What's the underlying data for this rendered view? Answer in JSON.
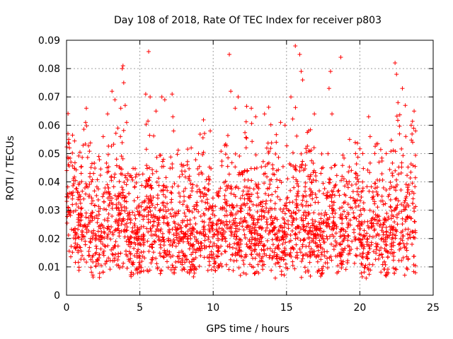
{
  "chart_data": {
    "type": "scatter",
    "title": "Day 108 of 2018, Rate Of TEC Index for receiver p803",
    "xlabel": "GPS time / hours",
    "ylabel": "ROTI / TECUs",
    "xlim": [
      0,
      25
    ],
    "ylim": [
      0,
      0.09
    ],
    "grid": true,
    "marker": "+",
    "color": "#ff0000",
    "x_ticks": [
      0,
      5,
      10,
      15,
      20,
      25
    ],
    "x_tick_labels": [
      "0",
      "5",
      "10",
      "15",
      "20",
      "25"
    ],
    "y_ticks": [
      0,
      0.01,
      0.02,
      0.03,
      0.04,
      0.05,
      0.06,
      0.07,
      0.08,
      0.09
    ],
    "y_tick_labels": [
      "0",
      "0.01",
      "0.02",
      "0.03",
      "0.04",
      "0.05",
      "0.06",
      "0.07",
      "0.08",
      "0.09"
    ],
    "series": [
      {
        "name": "ROTI",
        "points": [
          [
            0.1,
            0.057
          ],
          [
            0.15,
            0.055
          ],
          [
            0.2,
            0.052
          ],
          [
            0.3,
            0.047
          ],
          [
            0.35,
            0.036
          ],
          [
            0.4,
            0.032
          ],
          [
            1.0,
            0.043
          ],
          [
            1.3,
            0.061
          ],
          [
            1.35,
            0.066
          ],
          [
            1.6,
            0.043
          ],
          [
            2.2,
            0.049
          ],
          [
            2.5,
            0.056
          ],
          [
            2.8,
            0.064
          ],
          [
            3.1,
            0.072
          ],
          [
            3.3,
            0.069
          ],
          [
            3.5,
            0.059
          ],
          [
            3.7,
            0.066
          ],
          [
            3.8,
            0.08
          ],
          [
            3.85,
            0.081
          ],
          [
            3.9,
            0.075
          ],
          [
            4.0,
            0.067
          ],
          [
            4.1,
            0.061
          ],
          [
            5.4,
            0.071
          ],
          [
            5.6,
            0.086
          ],
          [
            5.7,
            0.07
          ],
          [
            6.1,
            0.065
          ],
          [
            6.5,
            0.07
          ],
          [
            6.7,
            0.069
          ],
          [
            7.2,
            0.071
          ],
          [
            7.25,
            0.063
          ],
          [
            7.3,
            0.058
          ],
          [
            8.5,
            0.052
          ],
          [
            9.0,
            0.05
          ],
          [
            9.8,
            0.058
          ],
          [
            11.1,
            0.085
          ],
          [
            11.2,
            0.072
          ],
          [
            11.5,
            0.066
          ],
          [
            11.7,
            0.07
          ],
          [
            12.6,
            0.066
          ],
          [
            12.9,
            0.063
          ],
          [
            13.5,
            0.064
          ],
          [
            14.3,
            0.054
          ],
          [
            14.6,
            0.061
          ],
          [
            14.9,
            0.06
          ],
          [
            15.3,
            0.07
          ],
          [
            15.6,
            0.088
          ],
          [
            15.9,
            0.085
          ],
          [
            16.0,
            0.079
          ],
          [
            16.1,
            0.076
          ],
          [
            16.5,
            0.058
          ],
          [
            16.9,
            0.064
          ],
          [
            17.9,
            0.073
          ],
          [
            18.1,
            0.064
          ],
          [
            18.0,
            0.079
          ],
          [
            18.7,
            0.084
          ],
          [
            19.3,
            0.055
          ],
          [
            20.2,
            0.05
          ],
          [
            20.6,
            0.063
          ],
          [
            20.7,
            0.056
          ],
          [
            21.8,
            0.05
          ],
          [
            22.4,
            0.082
          ],
          [
            22.5,
            0.078
          ],
          [
            22.6,
            0.068
          ],
          [
            22.9,
            0.073
          ],
          [
            23.1,
            0.067
          ],
          [
            23.5,
            0.06
          ],
          [
            23.7,
            0.065
          ],
          [
            23.6,
            0.054
          ],
          [
            23.8,
            0.058
          ]
        ]
      }
    ]
  }
}
